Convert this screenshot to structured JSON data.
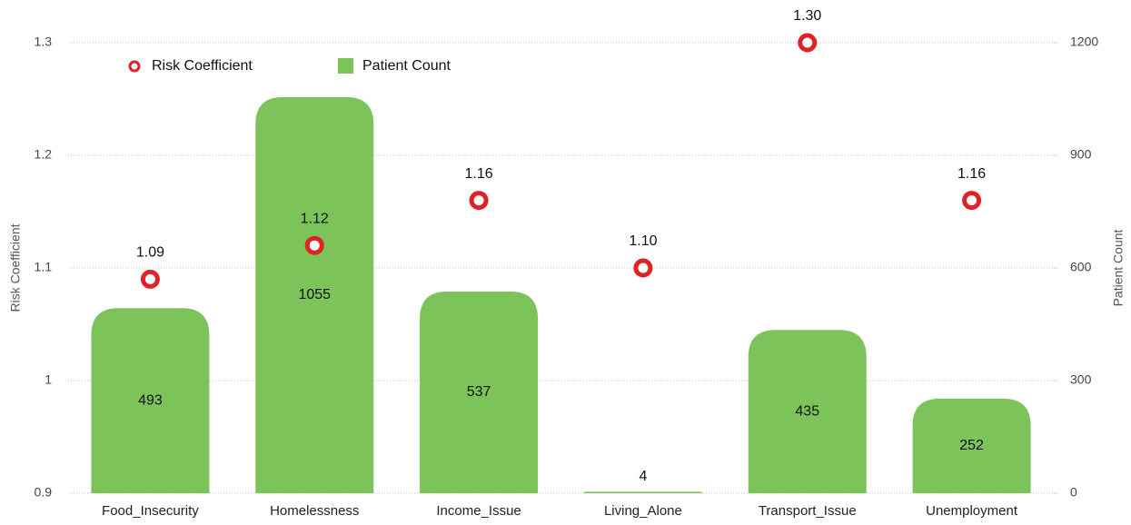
{
  "chart_data": {
    "type": "combo",
    "categories": [
      "Food_Insecurity",
      "Homelessness",
      "Income_Issue",
      "Living_Alone",
      "Transport_Issue",
      "Unemployment"
    ],
    "series": [
      {
        "name": "Risk Coefficient",
        "type": "scatter",
        "axis": "y",
        "color": "#e02224",
        "values": [
          1.09,
          1.12,
          1.16,
          1.1,
          1.3,
          1.16
        ],
        "value_labels": [
          "1.09",
          "1.12",
          "1.16",
          "1.10",
          "1.30",
          "1.16"
        ]
      },
      {
        "name": "Patient Count",
        "type": "bar",
        "axis": "y2",
        "color": "#7cc35a",
        "values": [
          493,
          1055,
          537,
          4,
          435,
          252
        ]
      }
    ],
    "ylabel": "Risk Coefficient",
    "y2label": "Patient Count",
    "ylim": [
      0.9,
      1.3
    ],
    "yticks": [
      0.9,
      1,
      1.1,
      1.2,
      1.3
    ],
    "y2lim": [
      0,
      1200
    ],
    "y2ticks": [
      0,
      300,
      600,
      900,
      1200
    ],
    "grid": true,
    "legend": "upper left"
  }
}
